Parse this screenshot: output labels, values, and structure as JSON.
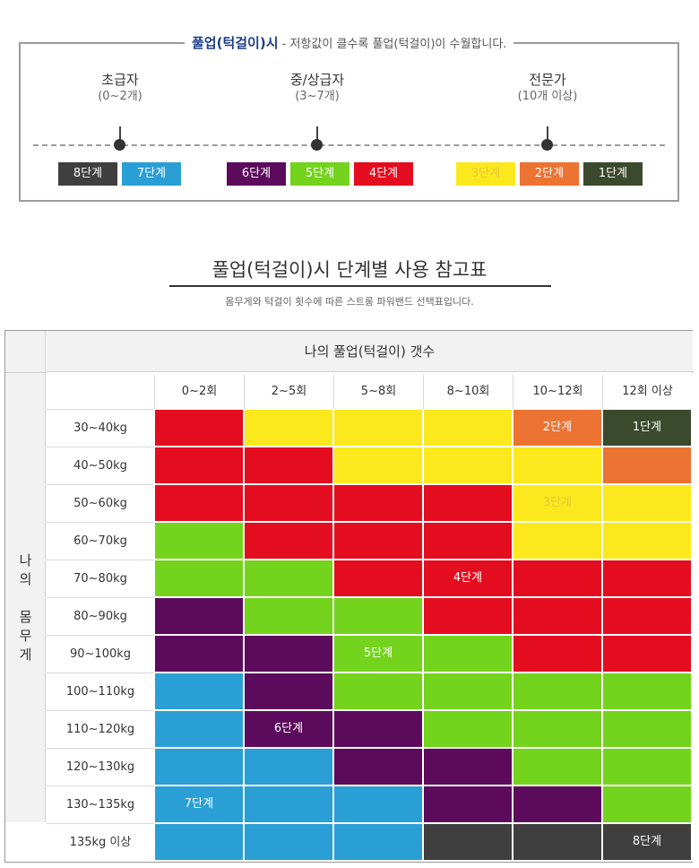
{
  "legend": {
    "caption_highlight": "풀업(턱걸이)시",
    "caption_rest": " - 저항값이 클수록 풀업(턱걸이)이 수월합니다.",
    "levels": [
      {
        "name": "초급자",
        "range": "(0~2개)"
      },
      {
        "name": "중/상급자",
        "range": "(3~7개)"
      },
      {
        "name": "전문가",
        "range": "(10개 이상)"
      }
    ],
    "chips": [
      {
        "label": "8단계",
        "color": "#3f3f3f",
        "text_color": "#ffffff"
      },
      {
        "label": "7단계",
        "color": "#2a9fd5",
        "text_color": "#ffffff"
      },
      {
        "label": "6단계",
        "color": "#5c0a5c",
        "text_color": "#ffffff"
      },
      {
        "label": "5단계",
        "color": "#74d31c",
        "text_color": "#ffffff"
      },
      {
        "label": "4단계",
        "color": "#e40d1f",
        "text_color": "#ffffff"
      },
      {
        "label": "3단계",
        "color": "#fbe91e",
        "text_color": "#e6c93a"
      },
      {
        "label": "2단계",
        "color": "#ec7332",
        "text_color": "#ffffff"
      },
      {
        "label": "1단계",
        "color": "#3b4a2c",
        "text_color": "#ffffff"
      }
    ]
  },
  "title": "풀업(턱걸이)시 단계별 사용 참고표",
  "subtitle": "몸무게와 턱걸이 횟수에 따른 스트롱 파워밴드 선택표입니다.",
  "table": {
    "side_label": "나\n의\n\n몸\n무\n게",
    "header": "나의 풀업(턱걸이) 갯수",
    "columns": [
      "0~2회",
      "2~5회",
      "5~8회",
      "8~10회",
      "10~12회",
      "12회 이상"
    ],
    "rows": [
      {
        "weight": "30~40kg",
        "cells": [
          "R",
          "Y",
          "Y",
          "Y",
          "O",
          "G"
        ],
        "labels": {
          "4": "2단계",
          "5": "1단계"
        }
      },
      {
        "weight": "40~50kg",
        "cells": [
          "R",
          "R",
          "Y",
          "Y",
          "Y",
          "O"
        ],
        "labels": {}
      },
      {
        "weight": "50~60kg",
        "cells": [
          "R",
          "R",
          "R",
          "R",
          "Y",
          "Y"
        ],
        "labels": {
          "4": "3단계"
        }
      },
      {
        "weight": "60~70kg",
        "cells": [
          "L",
          "R",
          "R",
          "R",
          "Y",
          "Y"
        ],
        "labels": {}
      },
      {
        "weight": "70~80kg",
        "cells": [
          "L",
          "L",
          "R",
          "R",
          "R",
          "R"
        ],
        "labels": {
          "3": "4단계"
        }
      },
      {
        "weight": "80~90kg",
        "cells": [
          "P",
          "L",
          "L",
          "R",
          "R",
          "R"
        ],
        "labels": {}
      },
      {
        "weight": "90~100kg",
        "cells": [
          "P",
          "P",
          "L",
          "L",
          "R",
          "R"
        ],
        "labels": {
          "2": "5단계"
        }
      },
      {
        "weight": "100~110kg",
        "cells": [
          "B",
          "P",
          "L",
          "L",
          "L",
          "L"
        ],
        "labels": {}
      },
      {
        "weight": "110~120kg",
        "cells": [
          "B",
          "P",
          "P",
          "L",
          "L",
          "L"
        ],
        "labels": {
          "1": "6단계"
        }
      },
      {
        "weight": "120~130kg",
        "cells": [
          "B",
          "B",
          "P",
          "P",
          "L",
          "L"
        ],
        "labels": {}
      },
      {
        "weight": "130~135kg",
        "cells": [
          "B",
          "B",
          "B",
          "P",
          "P",
          "L"
        ],
        "labels": {
          "0": "7단계"
        }
      },
      {
        "weight": "135kg 이상",
        "cells": [
          "B",
          "B",
          "B",
          "D",
          "D",
          "D"
        ],
        "labels": {
          "5": "8단계"
        }
      }
    ]
  },
  "colors": {
    "R": "#e40d1f",
    "Y": "#fbe91e",
    "O": "#ec7332",
    "G": "#3b4a2c",
    "L": "#74d31c",
    "P": "#5c0a5c",
    "B": "#2a9fd5",
    "D": "#3f3f3f",
    "yellow_text": "#e6c93a"
  }
}
